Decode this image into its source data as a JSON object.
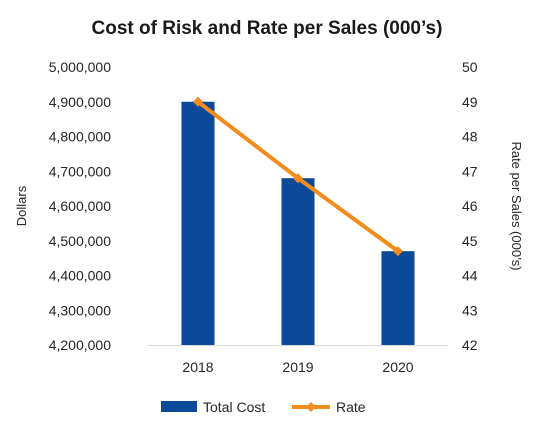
{
  "colors": {
    "bar": "#0b4a99",
    "line": "#f28c1c",
    "axis": "#d9d9d9"
  },
  "chart_data": {
    "type": "bar",
    "title": "Cost of Risk and Rate per Sales (000’s)",
    "categories": [
      "2018",
      "2019",
      "2020"
    ],
    "ylabel": "Dollars",
    "y2label": "Rate per Sales (000’s)",
    "ylim": [
      4200000,
      5000000
    ],
    "y2lim": [
      42,
      50
    ],
    "yticks": [
      "4,200,000",
      "4,300,000",
      "4,400,000",
      "4,500,000",
      "4,600,000",
      "4,700,000",
      "4,800,000",
      "4,900,000",
      "5,000,000"
    ],
    "y2ticks": [
      "42",
      "43",
      "44",
      "45",
      "46",
      "47",
      "48",
      "49",
      "50"
    ],
    "grid": false,
    "legend_position": "bottom",
    "series": [
      {
        "name": "Total Cost",
        "type": "bar",
        "axis": "left",
        "values": [
          4900000,
          4680000,
          4470000
        ]
      },
      {
        "name": "Rate",
        "type": "line",
        "axis": "right",
        "values": [
          49.0,
          46.8,
          44.7
        ]
      }
    ]
  }
}
